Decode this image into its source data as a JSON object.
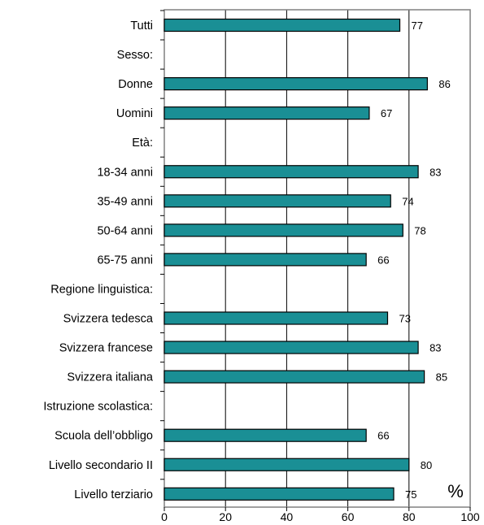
{
  "chart_data": {
    "type": "bar",
    "orientation": "horizontal",
    "categories": [
      "Tutti",
      "Sesso:",
      "Donne",
      "Uomini",
      "Età:",
      "18-34 anni",
      "35-49 anni",
      "50-64 anni",
      "65-75 anni",
      "Regione linguistica:",
      "Svizzera tedesca",
      "Svizzera francese",
      "Svizzera italiana",
      "Istruzione scolastica:",
      "Scuola dell’obbligo",
      "Livello secondario II",
      "Livello terziario"
    ],
    "values": [
      77,
      null,
      86,
      67,
      null,
      83,
      74,
      78,
      66,
      null,
      73,
      83,
      85,
      null,
      66,
      80,
      75
    ],
    "data_labels": [
      "77",
      "",
      "86",
      "67",
      "",
      "83",
      "74",
      "78",
      "66",
      "",
      "73",
      "83",
      "85",
      "",
      "66",
      "80",
      "75"
    ],
    "xlim": [
      0,
      100
    ],
    "xticks": [
      0,
      20,
      40,
      60,
      80,
      100
    ],
    "unit_label": "%",
    "grid": "vertical",
    "bar_color": "#1a8f95",
    "bar_edge_color": "#000000",
    "frame_color": "#808080"
  }
}
